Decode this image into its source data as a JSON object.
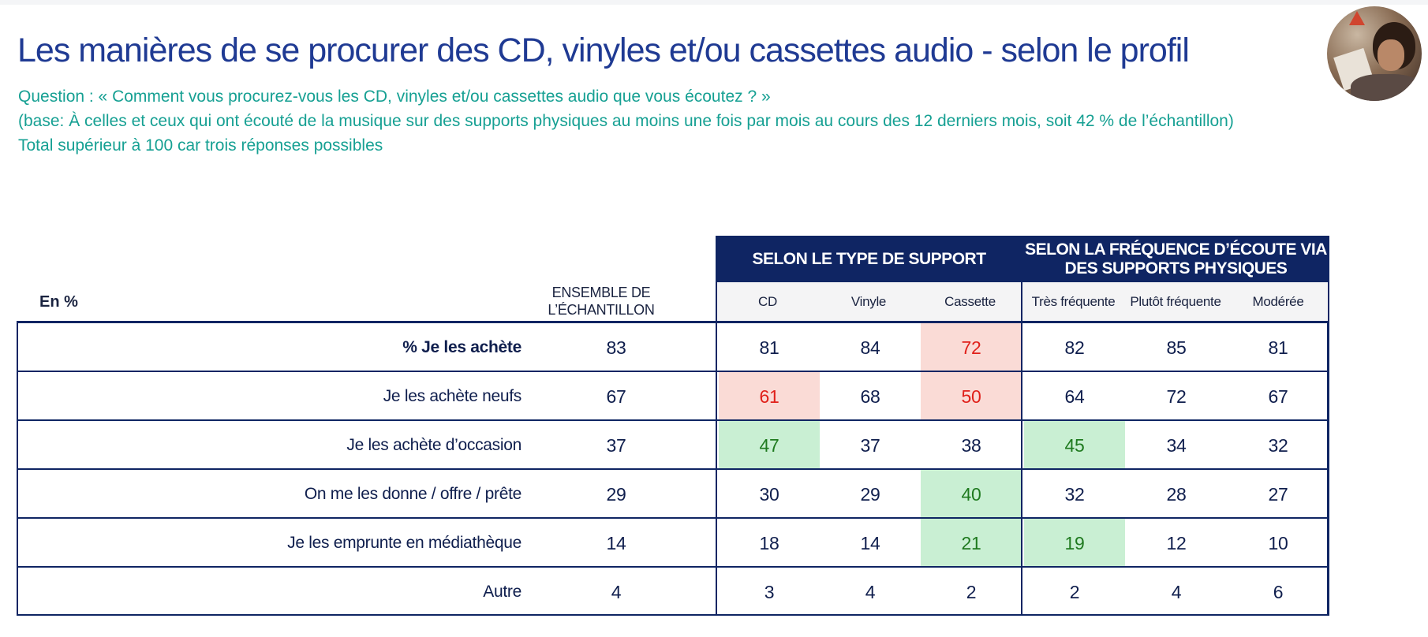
{
  "title": "Les manières de se procurer des CD, vinyles et/ou cassettes audio - selon le profil",
  "question": "Question : « Comment vous procurez-vous les CD, vinyles et/ou cassettes audio que vous écoutez ? »",
  "base": "(base: À celles et ceux qui ont écouté de la musique sur des supports physiques au moins une fois par mois au cours des 12 derniers mois, soit 42 % de l’échantillon)",
  "note": "Total supérieur à 100 car trois réponses possibles",
  "table": {
    "unit_label": "En %",
    "ensemble_label": "ENSEMBLE DE L’ÉCHANTILLON",
    "group_type": "SELON LE TYPE DE SUPPORT",
    "group_freq_line1": "SELON LA FRÉQUENCE D’ÉCOUTE VIA",
    "group_freq_line2": "DES SUPPORTS PHYSIQUES",
    "columns": [
      "CD",
      "Vinyle",
      "Cassette",
      "Très fréquente",
      "Plutôt fréquente",
      "Modérée"
    ],
    "rows": [
      {
        "label": "% Je les achète",
        "ensemble": "83",
        "values": [
          "81",
          "84",
          "72",
          "82",
          "85",
          "81"
        ]
      },
      {
        "label": "Je les achète neufs",
        "ensemble": "67",
        "values": [
          "61",
          "68",
          "50",
          "64",
          "72",
          "67"
        ]
      },
      {
        "label": "Je les achète d’occasion",
        "ensemble": "37",
        "values": [
          "47",
          "37",
          "38",
          "45",
          "34",
          "32"
        ]
      },
      {
        "label": "On me les donne / offre / prête",
        "ensemble": "29",
        "values": [
          "30",
          "29",
          "40",
          "32",
          "28",
          "27"
        ]
      },
      {
        "label": "Je les emprunte en médiathèque",
        "ensemble": "14",
        "values": [
          "18",
          "14",
          "21",
          "19",
          "12",
          "10"
        ]
      },
      {
        "label": "Autre",
        "ensemble": "4",
        "values": [
          "3",
          "4",
          "2",
          "2",
          "4",
          "6"
        ]
      }
    ],
    "highlight_colors": {
      "significantly_lower": "#e0201a",
      "significantly_higher": "#1f7a1f"
    }
  },
  "avatar_icon": "person-with-vinyl-photo"
}
